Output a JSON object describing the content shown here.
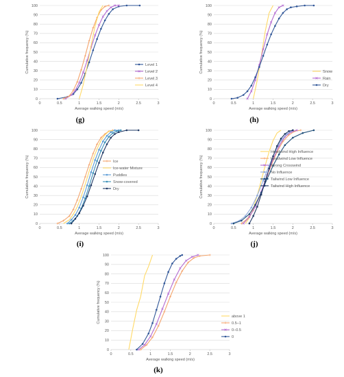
{
  "colors": {
    "grid": "#d9d9d9",
    "axis": "#bfbfbf",
    "text": "#595959"
  },
  "chart_data": [
    {
      "panel_label": "(g)",
      "type": "line",
      "ylabel": "Cumulative frequency (%)",
      "xlabel": "Average walking speed (m/s)",
      "xlim": [
        0,
        3
      ],
      "ylim": [
        0,
        100
      ],
      "xticks": [
        "0",
        "0.5",
        "1",
        "1.5",
        "2",
        "2.5",
        "3"
      ],
      "yticks": [
        "0",
        "10",
        "20",
        "30",
        "40",
        "50",
        "60",
        "70",
        "80",
        "90",
        "100"
      ],
      "grid": true,
      "legend_position": "bottom-right",
      "series": [
        {
          "name": "Level 1",
          "color": "#2f5597",
          "marker": "circle",
          "x": [
            0.45,
            0.7,
            0.85,
            0.95,
            1.05,
            1.15,
            1.25,
            1.35,
            1.45,
            1.55,
            1.65,
            1.75,
            1.85,
            2.0,
            2.2,
            2.53
          ],
          "y": [
            0,
            2,
            5,
            10,
            17,
            27,
            39,
            52,
            64,
            75,
            84,
            91,
            96,
            99,
            100,
            100
          ]
        },
        {
          "name": "Level 2",
          "color": "#b36ad1",
          "marker": "x",
          "x": [
            0.65,
            0.8,
            0.9,
            1.0,
            1.1,
            1.2,
            1.3,
            1.4,
            1.5,
            1.6,
            1.7,
            1.8,
            1.9,
            2.0
          ],
          "y": [
            0,
            4,
            9,
            17,
            28,
            41,
            55,
            68,
            79,
            88,
            94,
            98,
            100,
            100
          ]
        },
        {
          "name": "Level 3",
          "color": "#f4a46c",
          "marker": "cross",
          "x": [
            0.6,
            0.75,
            0.85,
            0.95,
            1.05,
            1.15,
            1.25,
            1.35,
            1.45,
            1.55,
            1.65,
            1.75
          ],
          "y": [
            0,
            3,
            9,
            18,
            31,
            46,
            62,
            76,
            87,
            95,
            99,
            100
          ]
        },
        {
          "name": "Level 4",
          "color": "#ffd966",
          "marker": "none",
          "x": [
            1.0,
            1.1,
            1.2,
            1.3,
            1.4,
            1.5,
            1.6
          ],
          "y": [
            0,
            15,
            35,
            57,
            78,
            93,
            100
          ]
        }
      ]
    },
    {
      "panel_label": "(h)",
      "type": "line",
      "ylabel": "Cumulative frequency (%)",
      "xlabel": "Average walking speed (m/s)",
      "xlim": [
        0,
        3
      ],
      "ylim": [
        0,
        100
      ],
      "xticks": [
        "0",
        "0.5",
        "1",
        "1.5",
        "2",
        "2.5",
        "3"
      ],
      "yticks": [
        "0",
        "10",
        "20",
        "30",
        "40",
        "50",
        "60",
        "70",
        "80",
        "90",
        "100"
      ],
      "grid": true,
      "legend_position": "bottom-right",
      "series": [
        {
          "name": "Snow",
          "color": "#ffd966",
          "marker": "none",
          "x": [
            1.0,
            1.1,
            1.2,
            1.3,
            1.4,
            1.5
          ],
          "y": [
            0,
            20,
            45,
            72,
            92,
            100
          ]
        },
        {
          "name": "Rain",
          "color": "#b36ad1",
          "marker": "x",
          "x": [
            0.85,
            0.95,
            1.05,
            1.15,
            1.25,
            1.35,
            1.45,
            1.55,
            1.65,
            1.75
          ],
          "y": [
            0,
            8,
            20,
            36,
            53,
            69,
            82,
            92,
            98,
            100
          ]
        },
        {
          "name": "Dry",
          "color": "#2f5597",
          "marker": "circle",
          "x": [
            0.45,
            0.6,
            0.75,
            0.85,
            0.95,
            1.05,
            1.15,
            1.25,
            1.35,
            1.45,
            1.55,
            1.65,
            1.75,
            1.85,
            1.95,
            2.1,
            2.3,
            2.53
          ],
          "y": [
            0,
            1,
            4,
            8,
            14,
            23,
            34,
            46,
            58,
            69,
            78,
            86,
            92,
            96,
            98,
            99,
            100,
            100
          ]
        }
      ]
    },
    {
      "panel_label": "(i)",
      "type": "line",
      "ylabel": "Cumulative frequency (%)",
      "xlabel": "Average walking speed (m/s)",
      "xlim": [
        0,
        3
      ],
      "ylim": [
        0,
        100
      ],
      "xticks": [
        "0",
        "0.5",
        "1",
        "1.5",
        "2",
        "2.5",
        "3"
      ],
      "yticks": [
        "0",
        "10",
        "20",
        "30",
        "40",
        "50",
        "60",
        "70",
        "80",
        "90",
        "100"
      ],
      "grid": true,
      "legend_position": "bottom-right",
      "series": [
        {
          "name": "Ice",
          "color": "#f4a46c",
          "marker": "cross",
          "x": [
            0.45,
            0.6,
            0.75,
            0.85,
            0.95,
            1.05,
            1.15,
            1.25,
            1.35,
            1.45,
            1.55,
            1.65,
            1.75,
            1.85
          ],
          "y": [
            0,
            3,
            8,
            15,
            25,
            37,
            50,
            63,
            75,
            85,
            92,
            96,
            99,
            100
          ]
        },
        {
          "name": "Ice-water Mixture",
          "color": "#ffd966",
          "marker": "none",
          "x": [
            0.6,
            0.75,
            0.85,
            0.95,
            1.05,
            1.15,
            1.25,
            1.35,
            1.45,
            1.55,
            1.65,
            1.75,
            1.9
          ],
          "y": [
            0,
            4,
            10,
            18,
            29,
            42,
            56,
            69,
            80,
            89,
            95,
            99,
            100
          ]
        },
        {
          "name": "Puddles",
          "color": "#5b9bd5",
          "marker": "circle",
          "x": [
            0.7,
            0.8,
            0.9,
            1.0,
            1.1,
            1.2,
            1.3,
            1.4,
            1.5,
            1.6,
            1.7,
            1.8,
            1.9,
            2.0
          ],
          "y": [
            0,
            4,
            9,
            17,
            28,
            41,
            55,
            68,
            79,
            88,
            94,
            98,
            100,
            100
          ]
        },
        {
          "name": "Snow-covered",
          "color": "#3a8fb7",
          "marker": "circle",
          "x": [
            0.75,
            0.85,
            0.95,
            1.05,
            1.15,
            1.25,
            1.35,
            1.45,
            1.55,
            1.65,
            1.75,
            1.85,
            1.95,
            2.05
          ],
          "y": [
            0,
            3,
            8,
            16,
            27,
            40,
            54,
            67,
            78,
            87,
            93,
            97,
            99,
            100
          ]
        },
        {
          "name": "Dry",
          "color": "#1f3864",
          "marker": "circle",
          "x": [
            0.8,
            0.9,
            1.0,
            1.1,
            1.2,
            1.3,
            1.4,
            1.5,
            1.6,
            1.7,
            1.8,
            1.9,
            2.0,
            2.2,
            2.5
          ],
          "y": [
            0,
            5,
            11,
            19,
            29,
            41,
            53,
            65,
            76,
            85,
            92,
            96,
            98,
            100,
            100
          ]
        }
      ]
    },
    {
      "panel_label": "(j)",
      "type": "line",
      "ylabel": "Cumulative frequency (%)",
      "xlabel": "Average walking speed (m/s)",
      "xlim": [
        0,
        3
      ],
      "ylim": [
        0,
        100
      ],
      "xticks": [
        "0",
        "0.5",
        "1",
        "1.5",
        "2",
        "2.5",
        "3"
      ],
      "yticks": [
        "0",
        "10",
        "20",
        "30",
        "40",
        "50",
        "60",
        "70",
        "80",
        "90",
        "100"
      ],
      "grid": true,
      "legend_position": "bottom-right",
      "series": [
        {
          "name": "Headwind High Influence",
          "color": "#ffd966",
          "marker": "none",
          "x": [
            0.8,
            0.9,
            1.0,
            1.1,
            1.2,
            1.3,
            1.4,
            1.5,
            1.6,
            1.7
          ],
          "y": [
            0,
            6,
            16,
            30,
            46,
            62,
            77,
            89,
            97,
            100
          ]
        },
        {
          "name": "Headwind Low Influence",
          "color": "#f4a46c",
          "marker": "cross",
          "x": [
            0.7,
            0.85,
            1.0,
            1.15,
            1.3,
            1.45,
            1.6,
            1.75,
            1.9,
            2.05,
            2.2
          ],
          "y": [
            0,
            5,
            14,
            28,
            45,
            62,
            77,
            88,
            95,
            99,
            100
          ]
        },
        {
          "name": "Strong Crosswind",
          "color": "#b36ad1",
          "marker": "x",
          "x": [
            0.75,
            0.9,
            1.05,
            1.2,
            1.35,
            1.5,
            1.65,
            1.8,
            1.95,
            2.1
          ],
          "y": [
            0,
            7,
            18,
            34,
            52,
            69,
            83,
            93,
            98,
            100
          ]
        },
        {
          "name": "No Influence",
          "color": "#8faadc",
          "marker": "circle",
          "x": [
            0.45,
            0.65,
            0.8,
            0.95,
            1.1,
            1.25,
            1.4,
            1.55,
            1.7,
            1.85,
            2.0
          ],
          "y": [
            0,
            3,
            8,
            17,
            30,
            46,
            62,
            77,
            89,
            96,
            100
          ]
        },
        {
          "name": "Tailwind Low Influence",
          "color": "#1f4e79",
          "marker": "circle",
          "x": [
            0.5,
            0.7,
            0.9,
            1.05,
            1.2,
            1.35,
            1.5,
            1.65,
            1.8,
            2.0,
            2.25,
            2.53
          ],
          "y": [
            0,
            3,
            10,
            20,
            33,
            48,
            62,
            74,
            84,
            92,
            97,
            100
          ]
        },
        {
          "name": "Tailwind High Influence",
          "color": "#203864",
          "marker": "square",
          "x": [
            0.9,
            1.0,
            1.1,
            1.2,
            1.3,
            1.4,
            1.5,
            1.6,
            1.7,
            1.8,
            1.9,
            2.0
          ],
          "y": [
            0,
            8,
            18,
            31,
            45,
            59,
            72,
            83,
            91,
            96,
            99,
            100
          ]
        }
      ]
    },
    {
      "panel_label": "(k)",
      "type": "line",
      "ylabel": "Cumulative frequency (%)",
      "xlabel": "Average walking speed (m/s)",
      "xlim": [
        0,
        3
      ],
      "ylim": [
        0,
        100
      ],
      "xticks": [
        "0",
        "0.5",
        "1",
        "1.5",
        "2",
        "2.5",
        "3"
      ],
      "yticks": [
        "0",
        "10",
        "20",
        "30",
        "40",
        "50",
        "60",
        "70",
        "80",
        "90",
        "100"
      ],
      "grid": true,
      "legend_position": "bottom-right",
      "series": [
        {
          "name": "above 1",
          "color": "#ffd966",
          "marker": "none",
          "x": [
            0.45,
            0.55,
            0.65,
            0.75,
            0.85,
            0.95,
            1.05
          ],
          "y": [
            0,
            22,
            42,
            56,
            78,
            88,
            100
          ]
        },
        {
          "name": "0.5–1",
          "color": "#f4a46c",
          "marker": "cross",
          "x": [
            0.75,
            0.9,
            1.05,
            1.2,
            1.35,
            1.5,
            1.65,
            1.8,
            1.95,
            2.1,
            2.25,
            2.5
          ],
          "y": [
            0,
            5,
            13,
            25,
            40,
            56,
            71,
            83,
            92,
            97,
            99,
            100
          ]
        },
        {
          "name": "0–0.5",
          "color": "#b36ad1",
          "marker": "x",
          "x": [
            0.7,
            0.85,
            1.0,
            1.15,
            1.3,
            1.45,
            1.6,
            1.75,
            1.9,
            2.05,
            2.2
          ],
          "y": [
            0,
            5,
            14,
            27,
            43,
            59,
            74,
            86,
            94,
            98,
            100
          ]
        },
        {
          "name": "0",
          "color": "#2f5597",
          "marker": "circle",
          "x": [
            0.65,
            0.8,
            0.95,
            1.05,
            1.15,
            1.25,
            1.35,
            1.45,
            1.55,
            1.65,
            1.75,
            1.8
          ],
          "y": [
            0,
            6,
            17,
            28,
            42,
            56,
            70,
            82,
            91,
            96,
            99,
            100
          ]
        }
      ]
    }
  ]
}
